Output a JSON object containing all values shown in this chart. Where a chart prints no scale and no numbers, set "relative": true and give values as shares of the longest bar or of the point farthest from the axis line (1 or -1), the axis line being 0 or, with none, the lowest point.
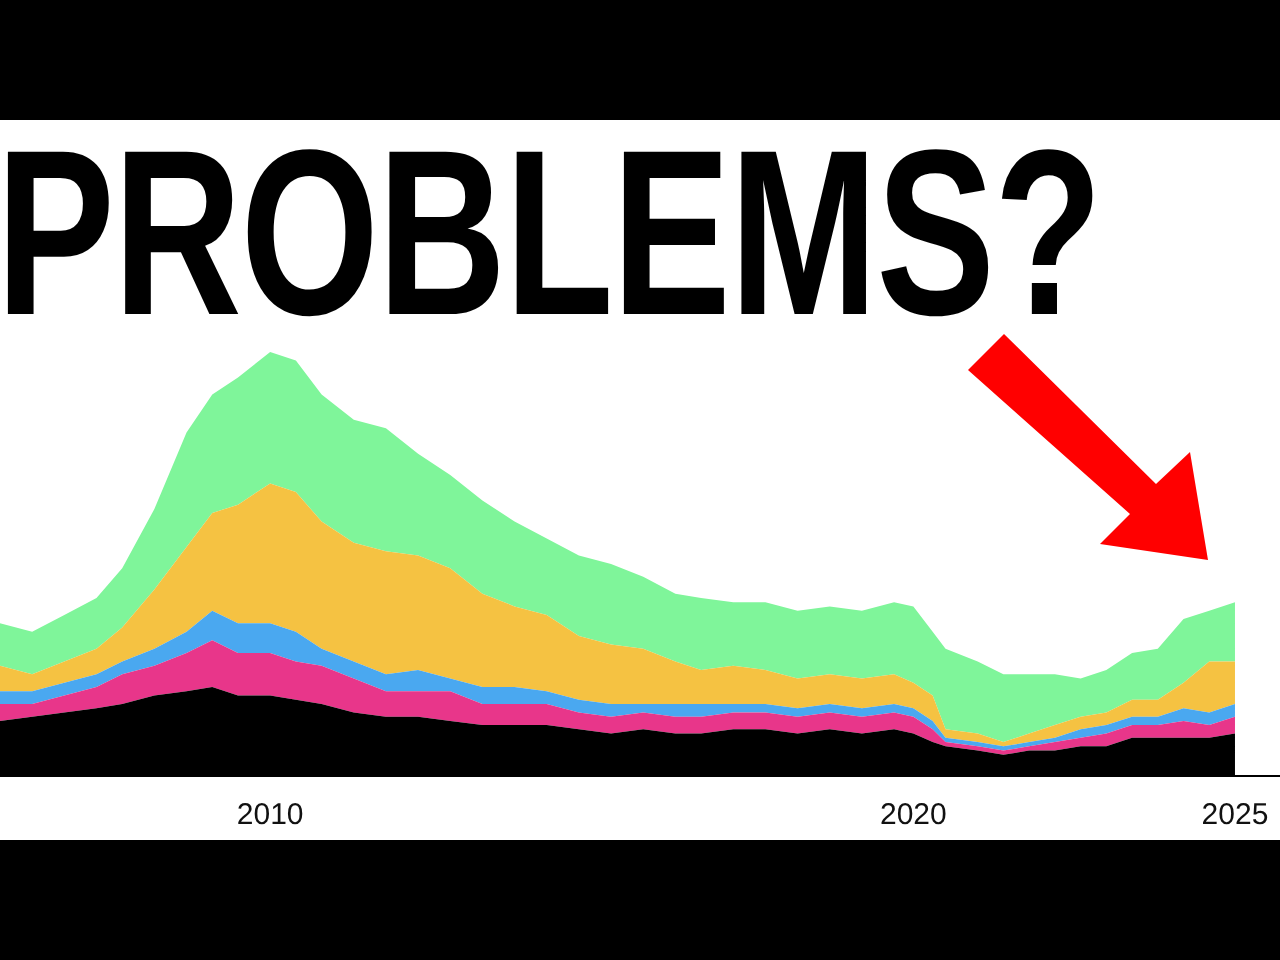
{
  "chart_data": {
    "type": "area",
    "title": "PROBLEMS?",
    "relative": true,
    "stacked": true,
    "x": [
      2005.8,
      2006.3,
      2006.8,
      2007.3,
      2007.7,
      2008.2,
      2008.7,
      2009.1,
      2009.5,
      2010.0,
      2010.4,
      2010.8,
      2011.3,
      2011.8,
      2012.3,
      2012.8,
      2013.3,
      2013.8,
      2014.3,
      2014.8,
      2015.3,
      2015.8,
      2016.3,
      2016.7,
      2017.2,
      2017.7,
      2018.2,
      2018.7,
      2019.2,
      2019.7,
      2020.0,
      2020.3,
      2020.5,
      2021.0,
      2021.4,
      2021.8,
      2022.2,
      2022.6,
      2023.0,
      2023.4,
      2023.8,
      2024.2,
      2024.6,
      2025.0
    ],
    "xlim": [
      2005.8,
      2025.7
    ],
    "xticks": [
      2010,
      2020,
      2025
    ],
    "series": [
      {
        "color": "#000000",
        "values": [
          0.13,
          0.14,
          0.15,
          0.16,
          0.17,
          0.19,
          0.2,
          0.21,
          0.19,
          0.19,
          0.18,
          0.17,
          0.15,
          0.14,
          0.14,
          0.13,
          0.12,
          0.12,
          0.12,
          0.11,
          0.1,
          0.11,
          0.1,
          0.1,
          0.11,
          0.11,
          0.1,
          0.11,
          0.1,
          0.11,
          0.1,
          0.08,
          0.07,
          0.06,
          0.05,
          0.06,
          0.06,
          0.07,
          0.07,
          0.09,
          0.09,
          0.09,
          0.09,
          0.1
        ]
      },
      {
        "color": "#e8368a",
        "values": [
          0.04,
          0.03,
          0.04,
          0.05,
          0.07,
          0.07,
          0.09,
          0.11,
          0.1,
          0.1,
          0.09,
          0.09,
          0.08,
          0.06,
          0.06,
          0.07,
          0.05,
          0.05,
          0.05,
          0.04,
          0.04,
          0.04,
          0.04,
          0.04,
          0.04,
          0.04,
          0.04,
          0.04,
          0.04,
          0.04,
          0.04,
          0.03,
          0.01,
          0.01,
          0.01,
          0.01,
          0.02,
          0.02,
          0.03,
          0.03,
          0.03,
          0.04,
          0.03,
          0.04
        ]
      },
      {
        "color": "#4aa8f0",
        "values": [
          0.03,
          0.03,
          0.03,
          0.03,
          0.03,
          0.04,
          0.05,
          0.07,
          0.07,
          0.07,
          0.07,
          0.04,
          0.04,
          0.04,
          0.05,
          0.03,
          0.04,
          0.04,
          0.03,
          0.03,
          0.03,
          0.02,
          0.03,
          0.03,
          0.02,
          0.02,
          0.02,
          0.02,
          0.02,
          0.02,
          0.02,
          0.02,
          0.01,
          0.01,
          0.01,
          0.01,
          0.01,
          0.02,
          0.02,
          0.02,
          0.02,
          0.03,
          0.03,
          0.03
        ]
      },
      {
        "color": "#f5c242",
        "values": [
          0.06,
          0.04,
          0.05,
          0.06,
          0.08,
          0.14,
          0.2,
          0.23,
          0.28,
          0.33,
          0.33,
          0.3,
          0.28,
          0.29,
          0.27,
          0.26,
          0.22,
          0.19,
          0.18,
          0.15,
          0.14,
          0.13,
          0.1,
          0.08,
          0.09,
          0.08,
          0.07,
          0.07,
          0.07,
          0.07,
          0.06,
          0.06,
          0.02,
          0.02,
          0.01,
          0.02,
          0.03,
          0.03,
          0.03,
          0.04,
          0.04,
          0.06,
          0.12,
          0.1
        ]
      },
      {
        "color": "#7ff59a",
        "values": [
          0.1,
          0.1,
          0.11,
          0.12,
          0.14,
          0.19,
          0.27,
          0.28,
          0.3,
          0.31,
          0.31,
          0.3,
          0.29,
          0.29,
          0.24,
          0.22,
          0.22,
          0.2,
          0.18,
          0.19,
          0.19,
          0.17,
          0.16,
          0.17,
          0.15,
          0.16,
          0.16,
          0.16,
          0.16,
          0.17,
          0.18,
          0.15,
          0.19,
          0.17,
          0.16,
          0.14,
          0.12,
          0.09,
          0.1,
          0.11,
          0.12,
          0.15,
          0.12,
          0.14
        ]
      }
    ]
  }
}
